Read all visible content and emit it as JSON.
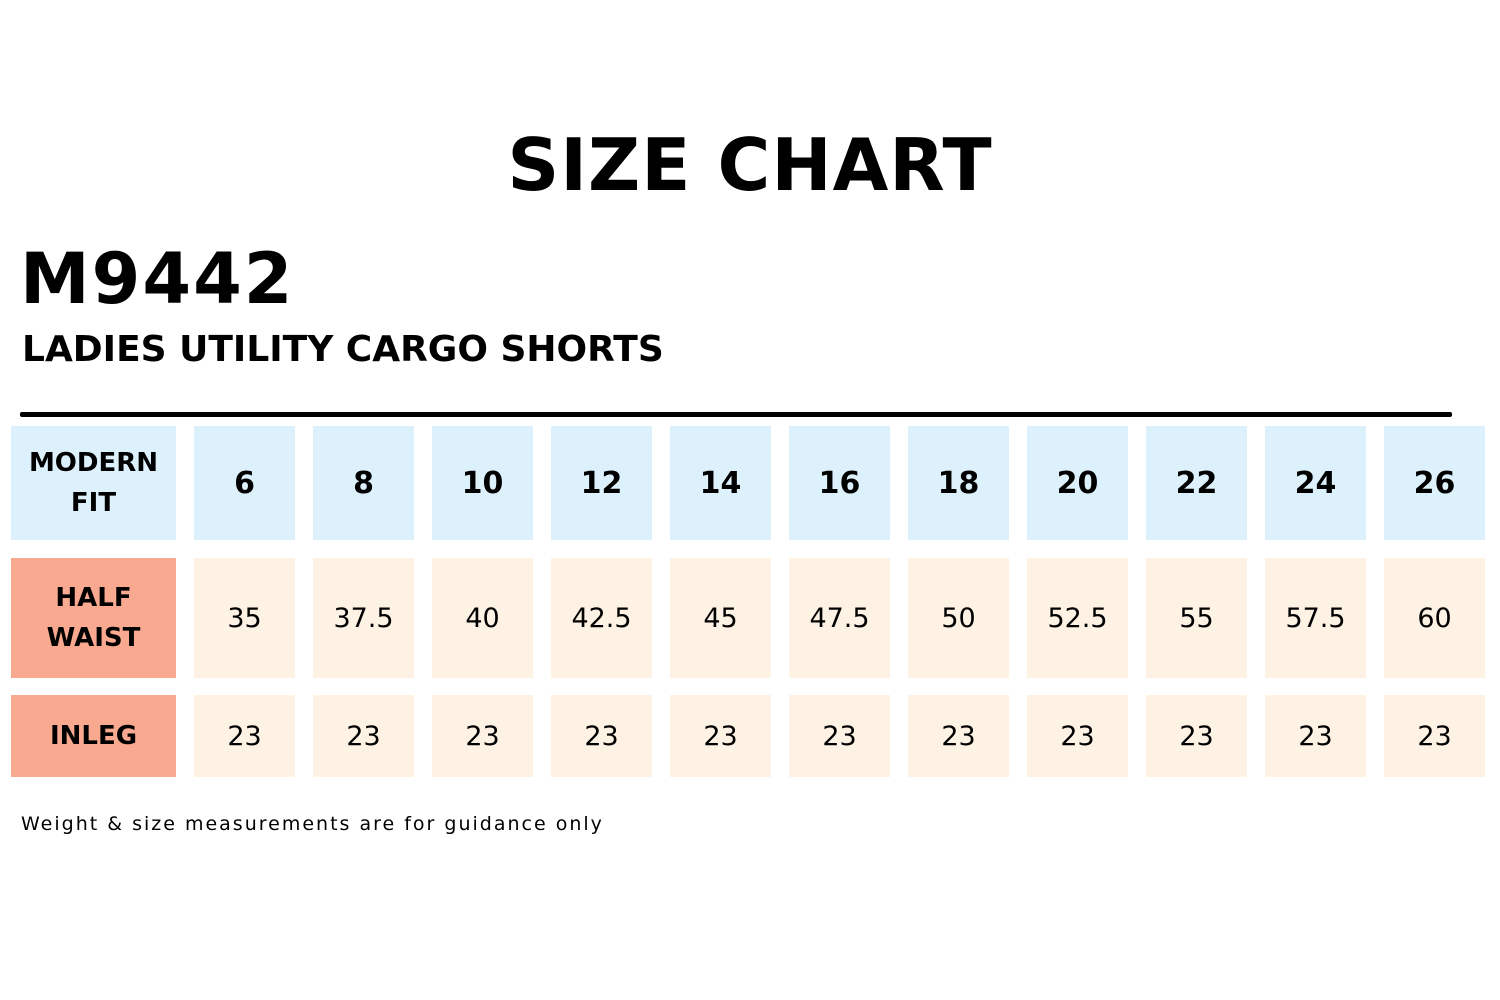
{
  "title": "SIZE CHART",
  "product_code": "M9442",
  "product_name": "LADIES UTILITY CARGO SHORTS",
  "footnote": "Weight & size measurements are for guidance only",
  "colors": {
    "header_bg": "#dcf1fb",
    "row_label_bg": "#f8a98f",
    "value_bg": "#fdf2e4",
    "divider": "#000000"
  },
  "chart_data": {
    "type": "table",
    "title": "SIZE CHART",
    "corner_label": "MODERN FIT",
    "columns": [
      "6",
      "8",
      "10",
      "12",
      "14",
      "16",
      "18",
      "20",
      "22",
      "24",
      "26"
    ],
    "rows": [
      {
        "label": "HALF WAIST",
        "values": [
          "35",
          "37.5",
          "40",
          "42.5",
          "45",
          "47.5",
          "50",
          "52.5",
          "55",
          "57.5",
          "60"
        ]
      },
      {
        "label": "INLEG",
        "values": [
          "23",
          "23",
          "23",
          "23",
          "23",
          "23",
          "23",
          "23",
          "23",
          "23",
          "23"
        ]
      }
    ]
  }
}
